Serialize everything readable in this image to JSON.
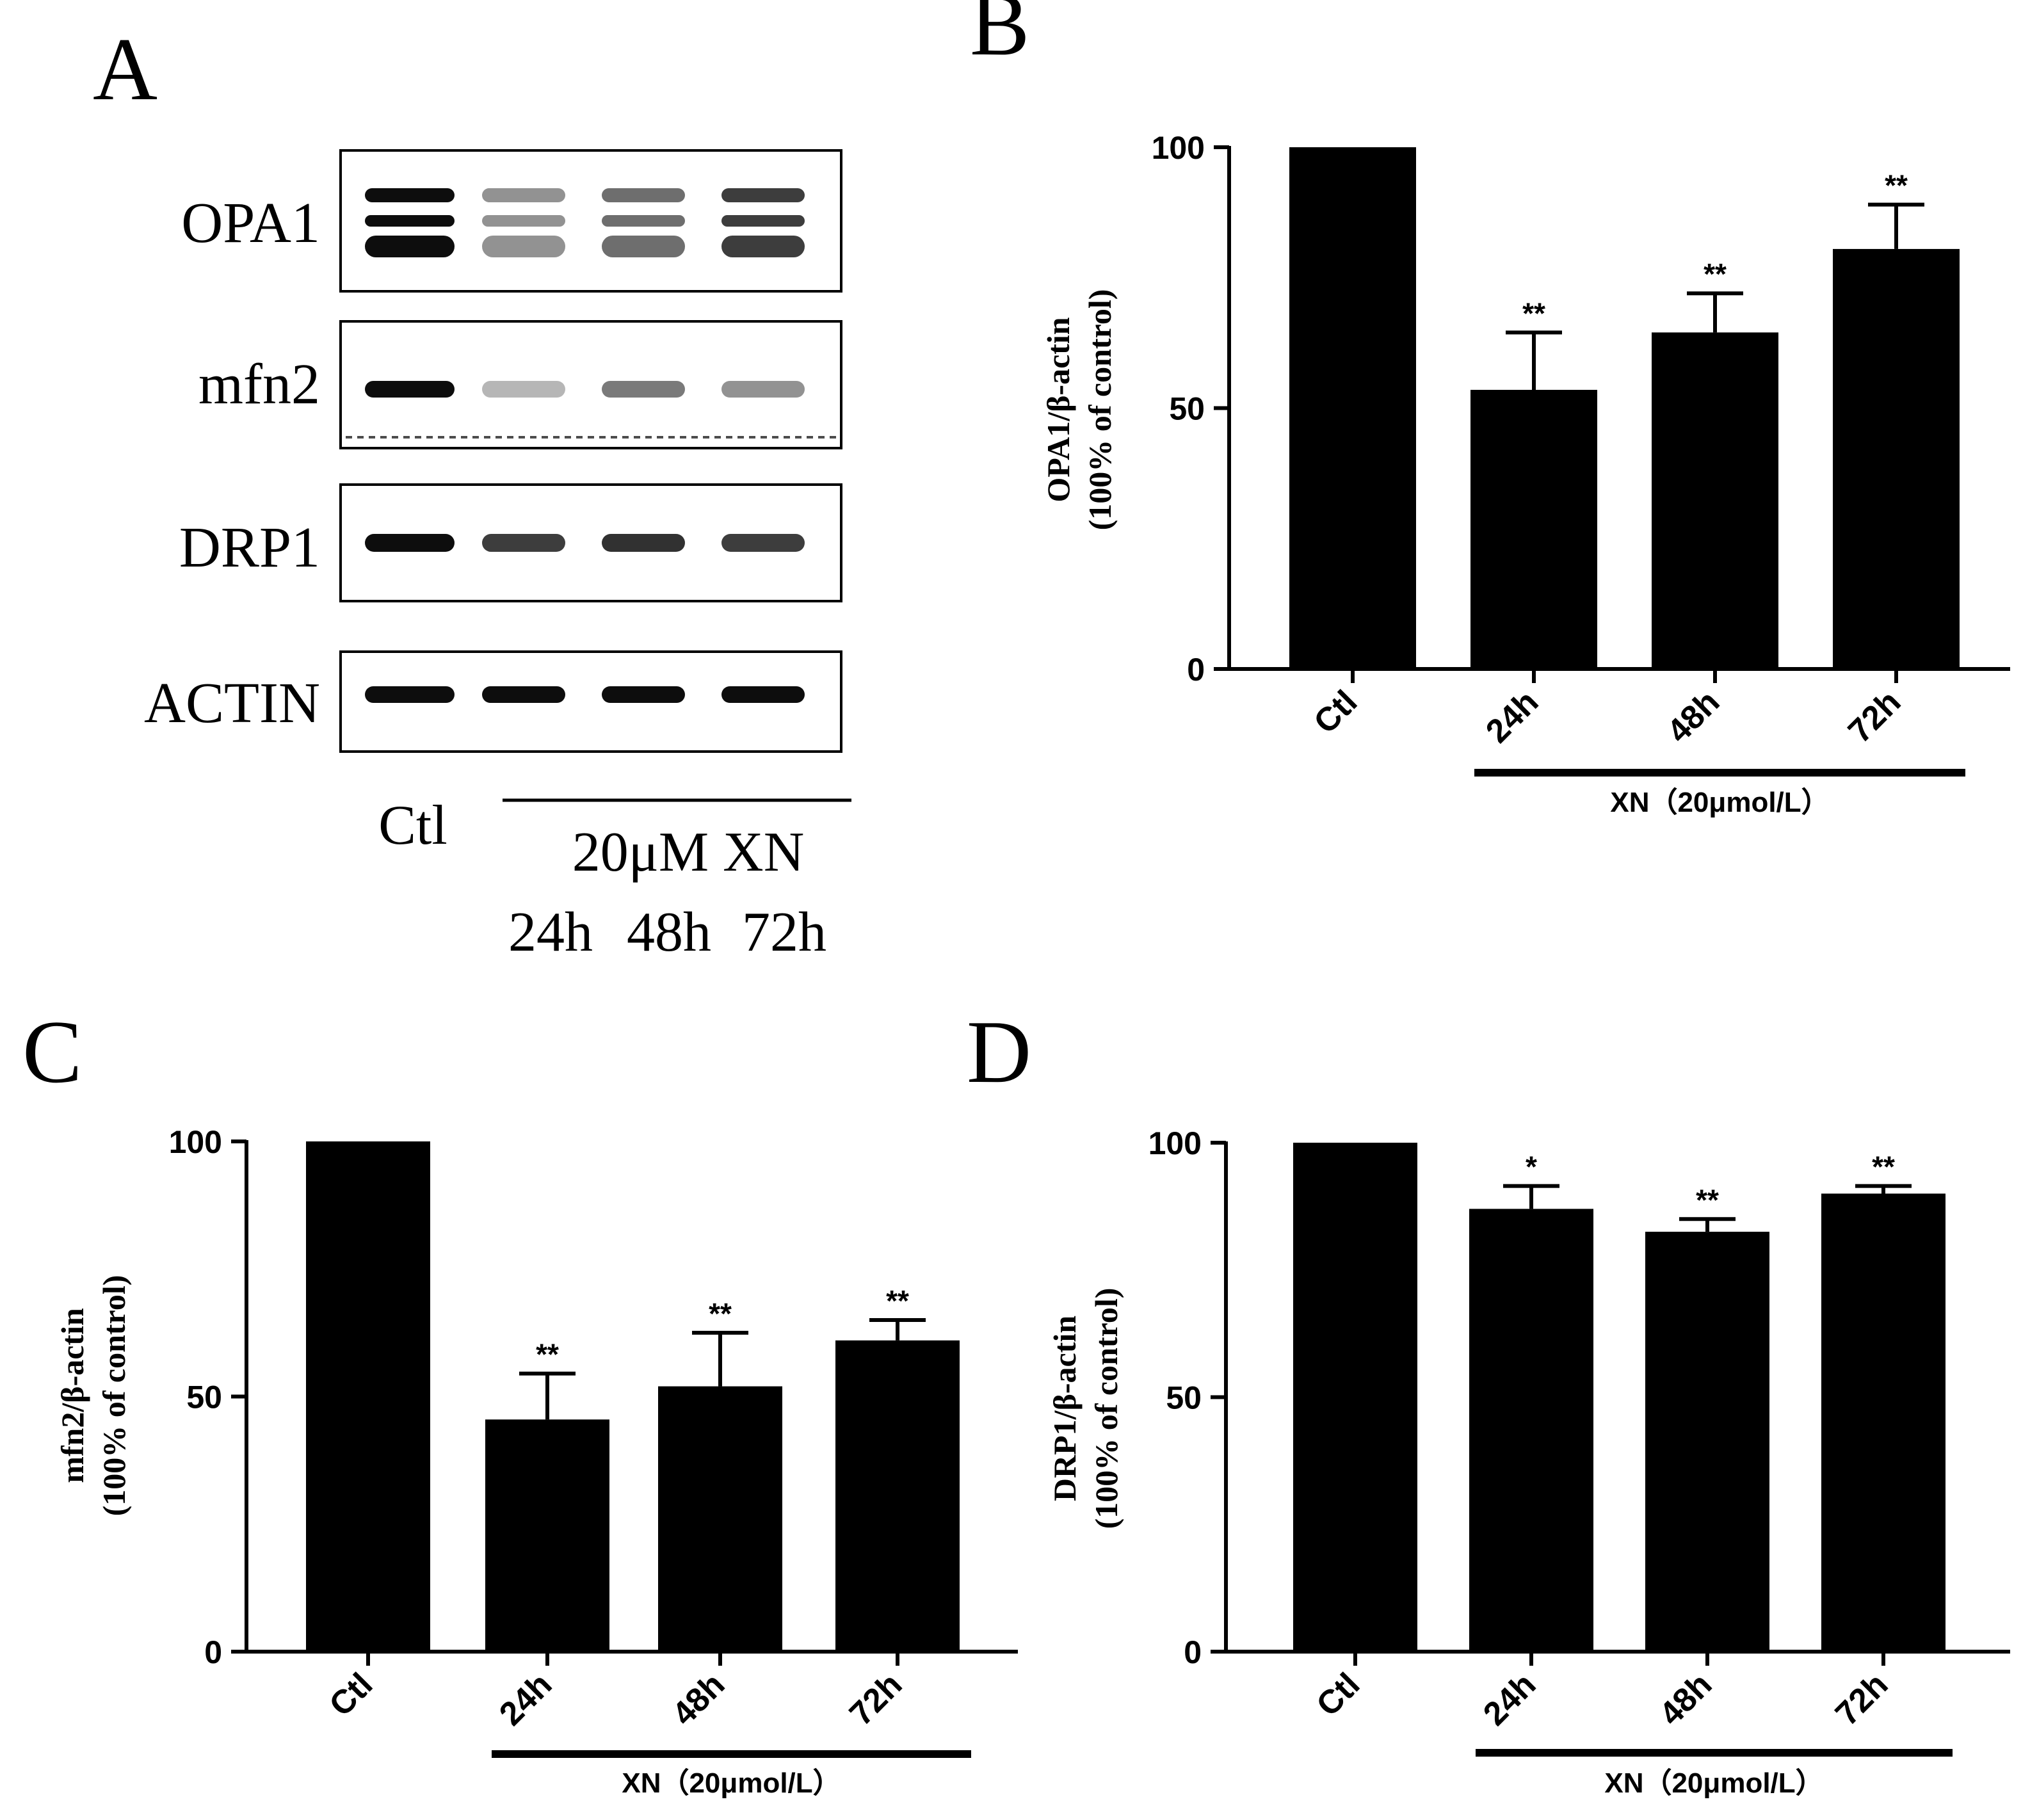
{
  "panel_letters": {
    "a": "A",
    "b": "B",
    "c": "C",
    "d": "D"
  },
  "western_blot": {
    "proteins": [
      "OPA1",
      "mfn2",
      "DRP1",
      "ACTIN"
    ],
    "ctl_label": "Ctl",
    "treatment_label": "20μM XN",
    "time_labels": [
      "24h",
      "48h",
      "72h"
    ],
    "band_intensity": {
      "OPA1": [
        1.0,
        0.45,
        0.6,
        0.8
      ],
      "mfn2": [
        1.0,
        0.3,
        0.55,
        0.45
      ],
      "DRP1": [
        1.0,
        0.8,
        0.85,
        0.8
      ],
      "ACTIN": [
        1.0,
        1.0,
        1.0,
        1.0
      ]
    }
  },
  "chart_data": [
    {
      "panel": "B",
      "type": "bar",
      "categories": [
        "Ctl",
        "24h",
        "48h",
        "72h"
      ],
      "values": [
        100,
        53.5,
        64.5,
        80.5
      ],
      "errors": [
        0,
        11,
        7.5,
        8.5
      ],
      "significance": [
        "",
        "**",
        "**",
        "**"
      ],
      "ylabel": [
        "OPA1/β-actin",
        "(100% of control)"
      ],
      "ylim": [
        0,
        100
      ],
      "yticks": [
        0,
        50,
        100
      ],
      "group_label": "XN（20μmol/L）",
      "color": "#000000"
    },
    {
      "panel": "C",
      "type": "bar",
      "categories": [
        "Ctl",
        "24h",
        "48h",
        "72h"
      ],
      "values": [
        100,
        45.5,
        52,
        61
      ],
      "errors": [
        0,
        9,
        10.5,
        4
      ],
      "significance": [
        "",
        "**",
        "**",
        "**"
      ],
      "ylabel": [
        "mfn2/β-actin",
        "(100% of control)"
      ],
      "ylim": [
        0,
        100
      ],
      "yticks": [
        0,
        50,
        100
      ],
      "group_label": "XN（20μmol/L）",
      "color": "#000000"
    },
    {
      "panel": "D",
      "type": "bar",
      "categories": [
        "Ctl",
        "24h",
        "48h",
        "72h"
      ],
      "values": [
        100,
        87,
        82.5,
        90
      ],
      "errors": [
        0,
        4.5,
        2.5,
        1.5
      ],
      "significance": [
        "",
        "*",
        "**",
        "**"
      ],
      "ylabel": [
        "DRP1/β-actin",
        "(100% of control)"
      ],
      "ylim": [
        0,
        100
      ],
      "yticks": [
        0,
        50,
        100
      ],
      "group_label": "XN（20μmol/L）",
      "color": "#000000"
    }
  ]
}
